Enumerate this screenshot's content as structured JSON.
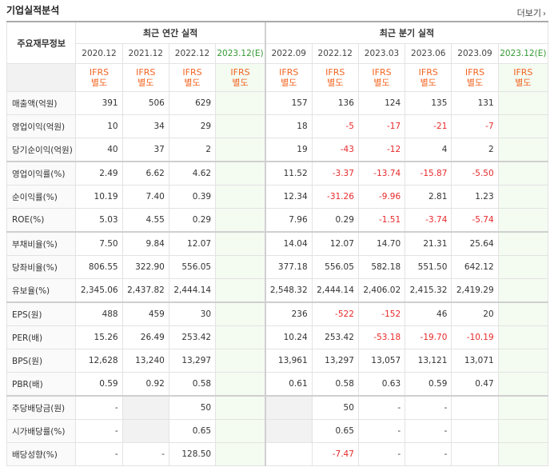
{
  "title": "기업실적분석",
  "more_label": "더보기",
  "group_annual": "최근 연간 실적",
  "group_quarter": "최근 분기 실적",
  "label_header": "주요재무정보",
  "ifrs_top": "IFRS",
  "ifrs_bottom": "별도",
  "periods": [
    "2020.12",
    "2021.12",
    "2022.12",
    "2023.12(E)",
    "2022.09",
    "2022.12",
    "2023.03",
    "2023.06",
    "2023.09",
    "2023.12(E)"
  ],
  "rows": [
    {
      "label": "매출액(억원)",
      "values": [
        "391",
        "506",
        "629",
        "",
        "157",
        "136",
        "124",
        "135",
        "131",
        ""
      ]
    },
    {
      "label": "영업이익(억원)",
      "values": [
        "10",
        "34",
        "29",
        "",
        "18",
        "-5",
        "-17",
        "-21",
        "-7",
        ""
      ]
    },
    {
      "label": "당기순이익(억원)",
      "values": [
        "40",
        "37",
        "2",
        "",
        "19",
        "-43",
        "-12",
        "4",
        "2",
        ""
      ]
    },
    {
      "label": "영업이익률(%)",
      "values": [
        "2.49",
        "6.62",
        "4.62",
        "",
        "11.52",
        "-3.37",
        "-13.74",
        "-15.87",
        "-5.50",
        ""
      ]
    },
    {
      "label": "순이익률(%)",
      "values": [
        "10.19",
        "7.40",
        "0.39",
        "",
        "12.34",
        "-31.26",
        "-9.96",
        "2.81",
        "1.23",
        ""
      ]
    },
    {
      "label": "ROE(%)",
      "values": [
        "5.03",
        "4.55",
        "0.29",
        "",
        "7.96",
        "0.29",
        "-1.51",
        "-3.74",
        "-5.74",
        ""
      ]
    },
    {
      "label": "부채비율(%)",
      "values": [
        "7.50",
        "9.84",
        "12.07",
        "",
        "14.04",
        "12.07",
        "14.70",
        "21.31",
        "25.64",
        ""
      ]
    },
    {
      "label": "당좌비율(%)",
      "values": [
        "806.55",
        "322.90",
        "556.05",
        "",
        "377.18",
        "556.05",
        "582.18",
        "551.50",
        "642.12",
        ""
      ]
    },
    {
      "label": "유보율(%)",
      "values": [
        "2,345.06",
        "2,437.82",
        "2,444.14",
        "",
        "2,548.32",
        "2,444.14",
        "2,406.02",
        "2,415.32",
        "2,419.29",
        ""
      ]
    },
    {
      "label": "EPS(원)",
      "values": [
        "488",
        "459",
        "30",
        "",
        "236",
        "-522",
        "-152",
        "46",
        "20",
        ""
      ]
    },
    {
      "label": "PER(배)",
      "values": [
        "15.26",
        "26.49",
        "253.42",
        "",
        "10.24",
        "253.42",
        "-53.18",
        "-19.70",
        "-10.19",
        ""
      ]
    },
    {
      "label": "BPS(원)",
      "values": [
        "12,628",
        "13,240",
        "13,297",
        "",
        "13,961",
        "13,297",
        "13,057",
        "13,121",
        "13,071",
        ""
      ]
    },
    {
      "label": "PBR(배)",
      "values": [
        "0.59",
        "0.92",
        "0.58",
        "",
        "0.61",
        "0.58",
        "0.63",
        "0.59",
        "0.47",
        ""
      ]
    },
    {
      "label": "주당배당금(원)",
      "values": [
        "-",
        "",
        "50",
        "",
        "",
        "50",
        "-",
        "-",
        "",
        ""
      ]
    },
    {
      "label": "시가배당률(%)",
      "values": [
        "-",
        "",
        "0.65",
        "",
        "",
        "0.65",
        "-",
        "-",
        "",
        ""
      ]
    },
    {
      "label": "배당성향(%)",
      "values": [
        "-",
        "-",
        "128.50",
        "",
        "",
        "-7.47",
        "-",
        "-",
        "",
        ""
      ]
    }
  ]
}
